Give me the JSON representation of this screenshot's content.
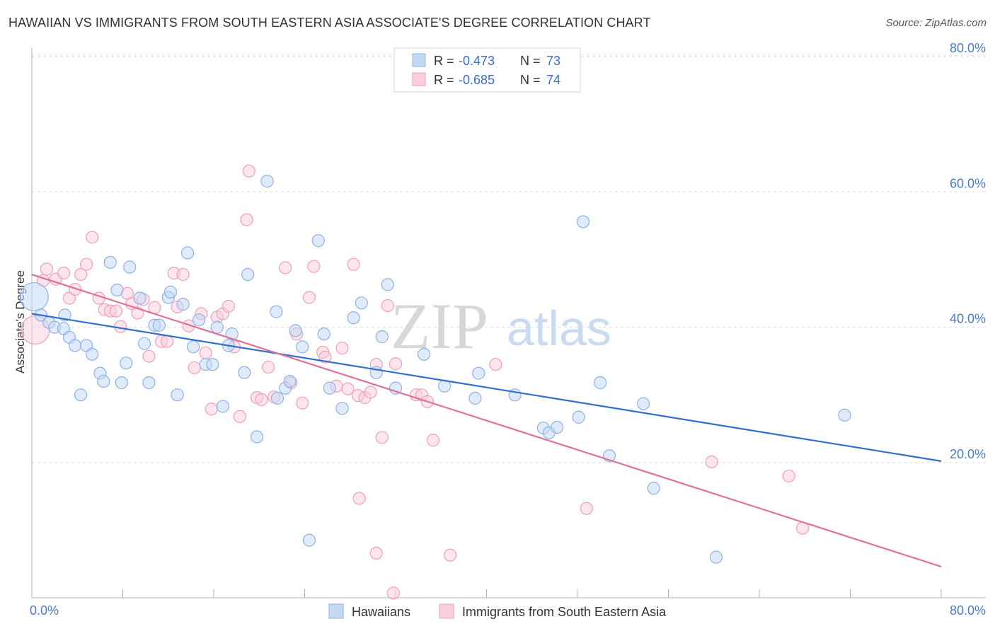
{
  "header": {
    "title": "HAWAIIAN VS IMMIGRANTS FROM SOUTH EASTERN ASIA ASSOCIATE'S DEGREE CORRELATION CHART",
    "source": "Source: ZipAtlas.com"
  },
  "stats_legend": {
    "rows": [
      {
        "r_label": "R = ",
        "r_value": "-0.473",
        "n_label": "N = ",
        "n_value": "73"
      },
      {
        "r_label": "R = ",
        "r_value": "-0.685",
        "n_label": "N = ",
        "n_value": "74"
      }
    ]
  },
  "bottom_legend": {
    "items": [
      {
        "label": "Hawaiians"
      },
      {
        "label": "Immigrants from South Eastern Asia"
      }
    ]
  },
  "watermark": {
    "zip": "ZIP",
    "atlas": "atlas"
  },
  "colors": {
    "blue_fill": "#c5d9f5",
    "blue_stroke": "#8fb2e4",
    "blue_line": "#2f6fd0",
    "pink_fill": "#f9cfdc",
    "pink_stroke": "#eda1b9",
    "pink_line": "#e0709a"
  },
  "chart_data": {
    "type": "scatter",
    "title": "HAWAIIAN VS IMMIGRANTS FROM SOUTH EASTERN ASIA ASSOCIATE'S DEGREE CORRELATION CHART",
    "xlabel": "",
    "ylabel": "Associate's Degree",
    "xlim": [
      0,
      80
    ],
    "ylim": [
      0,
      82
    ],
    "x_tick_labels": [
      "0.0%",
      "80.0%"
    ],
    "y_ticks": [
      20,
      40,
      60,
      80
    ],
    "y_tick_labels": [
      "20.0%",
      "40.0%",
      "60.0%",
      "80.0%"
    ],
    "grid": "horizontal dashed",
    "series": [
      {
        "name": "Hawaiians",
        "color": "#8fb2e4",
        "r": -0.473,
        "n": 73,
        "trend": {
          "x0": 0,
          "y0": 42.0,
          "x1": 80,
          "y1": 20.2
        },
        "points": [
          [
            0.2,
            44.5
          ],
          [
            0.8,
            41.8
          ],
          [
            1.5,
            40.7
          ],
          [
            2.0,
            40.0
          ],
          [
            2.8,
            39.8
          ],
          [
            2.9,
            41.8
          ],
          [
            3.3,
            38.5
          ],
          [
            3.8,
            37.3
          ],
          [
            4.3,
            30.0
          ],
          [
            4.8,
            37.3
          ],
          [
            5.3,
            36.0
          ],
          [
            6.0,
            33.2
          ],
          [
            6.3,
            32.0
          ],
          [
            6.9,
            49.6
          ],
          [
            7.5,
            45.5
          ],
          [
            7.9,
            31.8
          ],
          [
            8.3,
            34.7
          ],
          [
            8.6,
            48.9
          ],
          [
            9.5,
            44.3
          ],
          [
            9.9,
            37.6
          ],
          [
            10.3,
            31.8
          ],
          [
            10.8,
            40.3
          ],
          [
            11.2,
            40.3
          ],
          [
            12.0,
            44.4
          ],
          [
            12.2,
            45.2
          ],
          [
            12.8,
            30.0
          ],
          [
            13.3,
            43.4
          ],
          [
            13.7,
            51.0
          ],
          [
            14.2,
            37.1
          ],
          [
            14.7,
            41.1
          ],
          [
            15.3,
            34.5
          ],
          [
            15.9,
            34.5
          ],
          [
            16.3,
            40.0
          ],
          [
            16.8,
            28.3
          ],
          [
            17.3,
            37.3
          ],
          [
            17.6,
            39.0
          ],
          [
            18.7,
            33.3
          ],
          [
            19.0,
            47.8
          ],
          [
            19.8,
            23.8
          ],
          [
            20.7,
            61.6
          ],
          [
            21.5,
            42.3
          ],
          [
            21.6,
            29.5
          ],
          [
            22.3,
            31.0
          ],
          [
            22.7,
            32.0
          ],
          [
            23.2,
            39.5
          ],
          [
            23.8,
            37.1
          ],
          [
            24.4,
            8.5
          ],
          [
            25.2,
            52.8
          ],
          [
            25.7,
            39.0
          ],
          [
            26.2,
            31.0
          ],
          [
            27.3,
            28.0
          ],
          [
            28.3,
            41.4
          ],
          [
            29.0,
            43.6
          ],
          [
            30.3,
            33.3
          ],
          [
            30.8,
            38.6
          ],
          [
            31.3,
            46.3
          ],
          [
            32.0,
            31.0
          ],
          [
            34.5,
            36.0
          ],
          [
            36.3,
            31.3
          ],
          [
            39.0,
            29.5
          ],
          [
            39.3,
            33.2
          ],
          [
            42.5,
            30.0
          ],
          [
            45.0,
            25.1
          ],
          [
            45.5,
            24.4
          ],
          [
            46.2,
            25.2
          ],
          [
            48.1,
            26.7
          ],
          [
            48.5,
            55.6
          ],
          [
            50.0,
            31.8
          ],
          [
            50.8,
            21.0
          ],
          [
            53.8,
            28.7
          ],
          [
            54.7,
            16.2
          ],
          [
            60.2,
            6.0
          ],
          [
            71.5,
            27.0
          ]
        ]
      },
      {
        "name": "Immigrants from South Eastern Asia",
        "color": "#eda1b9",
        "r": -0.685,
        "n": 74,
        "trend": {
          "x0": 0,
          "y0": 47.8,
          "x1": 80,
          "y1": 4.6
        },
        "points": [
          [
            0.3,
            39.6
          ],
          [
            1.0,
            46.9
          ],
          [
            1.3,
            48.6
          ],
          [
            2.1,
            47.1
          ],
          [
            2.8,
            48.0
          ],
          [
            3.3,
            44.3
          ],
          [
            3.8,
            45.6
          ],
          [
            4.3,
            47.8
          ],
          [
            4.8,
            49.3
          ],
          [
            5.3,
            53.3
          ],
          [
            5.9,
            44.3
          ],
          [
            6.4,
            42.6
          ],
          [
            6.9,
            42.4
          ],
          [
            7.4,
            42.4
          ],
          [
            7.8,
            40.1
          ],
          [
            8.4,
            45.0
          ],
          [
            8.8,
            43.5
          ],
          [
            9.3,
            42.1
          ],
          [
            9.8,
            44.1
          ],
          [
            10.3,
            35.7
          ],
          [
            10.8,
            42.9
          ],
          [
            11.4,
            37.9
          ],
          [
            11.9,
            37.9
          ],
          [
            12.5,
            48.0
          ],
          [
            12.8,
            43.0
          ],
          [
            13.3,
            47.8
          ],
          [
            13.8,
            40.2
          ],
          [
            14.3,
            34.0
          ],
          [
            14.9,
            42.0
          ],
          [
            15.3,
            36.2
          ],
          [
            15.8,
            27.9
          ],
          [
            16.3,
            41.5
          ],
          [
            16.8,
            42.0
          ],
          [
            17.3,
            43.1
          ],
          [
            17.8,
            37.1
          ],
          [
            18.3,
            26.8
          ],
          [
            18.9,
            55.9
          ],
          [
            19.1,
            63.1
          ],
          [
            19.8,
            29.6
          ],
          [
            20.2,
            29.3
          ],
          [
            20.8,
            34.1
          ],
          [
            21.3,
            29.7
          ],
          [
            22.3,
            48.8
          ],
          [
            22.8,
            31.8
          ],
          [
            23.3,
            39.0
          ],
          [
            23.8,
            28.8
          ],
          [
            24.4,
            44.4
          ],
          [
            24.8,
            49.0
          ],
          [
            25.6,
            36.3
          ],
          [
            25.8,
            35.6
          ],
          [
            26.8,
            31.3
          ],
          [
            27.3,
            36.9
          ],
          [
            27.8,
            30.9
          ],
          [
            28.3,
            49.3
          ],
          [
            28.7,
            29.9
          ],
          [
            29.3,
            29.6
          ],
          [
            29.8,
            30.4
          ],
          [
            30.3,
            34.5
          ],
          [
            30.8,
            23.7
          ],
          [
            31.3,
            43.2
          ],
          [
            32.0,
            34.6
          ],
          [
            33.8,
            30.0
          ],
          [
            34.3,
            30.0
          ],
          [
            34.8,
            29.0
          ],
          [
            35.3,
            23.3
          ],
          [
            36.8,
            6.3
          ],
          [
            40.8,
            34.5
          ],
          [
            48.8,
            13.2
          ],
          [
            59.8,
            20.1
          ],
          [
            66.6,
            18.0
          ],
          [
            67.8,
            10.3
          ],
          [
            30.3,
            6.6
          ],
          [
            31.8,
            0.7
          ],
          [
            28.8,
            14.7
          ]
        ]
      }
    ]
  }
}
